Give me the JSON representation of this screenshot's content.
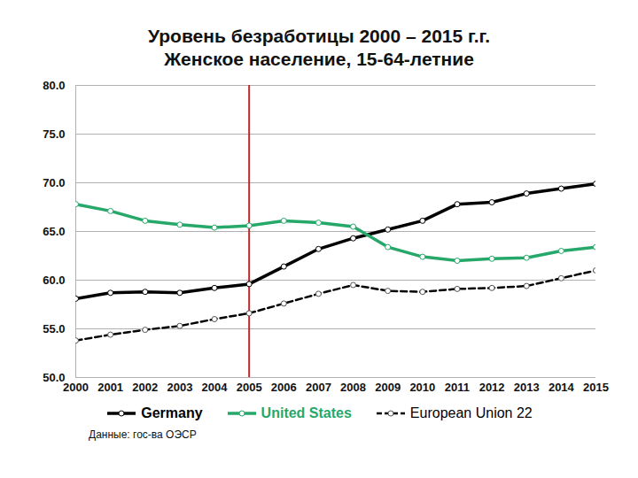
{
  "chart_data": {
    "type": "line",
    "title": "Уровень безработицы 2000 – 2015 г.г.",
    "subtitle": "Женское население, 15-64-летние",
    "source": "Данные: гос-ва ОЭСР",
    "x": [
      2000,
      2001,
      2002,
      2003,
      2004,
      2005,
      2006,
      2007,
      2008,
      2009,
      2010,
      2011,
      2012,
      2013,
      2014,
      2015
    ],
    "series": [
      {
        "name": "Germany",
        "color": "#000000",
        "marker": "circle",
        "line_style": "solid",
        "values": [
          58.1,
          58.7,
          58.8,
          58.7,
          59.2,
          59.6,
          61.4,
          63.2,
          64.3,
          65.2,
          66.1,
          67.8,
          68.0,
          68.9,
          69.4,
          69.9
        ]
      },
      {
        "name": "United States",
        "color": "#26a86a",
        "marker": "circle",
        "line_style": "solid",
        "values": [
          67.8,
          67.1,
          66.1,
          65.7,
          65.4,
          65.6,
          66.1,
          65.9,
          65.5,
          63.4,
          62.4,
          62.0,
          62.2,
          62.3,
          63.0,
          63.4
        ]
      },
      {
        "name": "European Union 22",
        "color": "#000000",
        "marker": "circle",
        "line_style": "dashed",
        "values": [
          53.8,
          54.4,
          54.9,
          55.3,
          56.0,
          56.6,
          57.6,
          58.6,
          59.5,
          58.9,
          58.8,
          59.1,
          59.2,
          59.4,
          60.2,
          61.0
        ]
      }
    ],
    "reference_lines": [
      {
        "x": 2005,
        "color": "#c0282d"
      }
    ],
    "xlim": [
      2000,
      2015
    ],
    "xticks": [
      2000,
      2001,
      2002,
      2003,
      2004,
      2005,
      2006,
      2007,
      2008,
      2009,
      2010,
      2011,
      2012,
      2013,
      2014,
      2015
    ],
    "ylim": [
      50,
      80
    ],
    "yticks": [
      {
        "value": 50,
        "label": "50.0"
      },
      {
        "value": 55,
        "label": "55.0"
      },
      {
        "value": 60,
        "label": "60.0"
      },
      {
        "value": 65,
        "label": "65.0"
      },
      {
        "value": 70,
        "label": "70.0"
      },
      {
        "value": 75,
        "label": "75.0"
      },
      {
        "value": 80,
        "label": "80.0"
      }
    ],
    "grid": true,
    "legend": "bottom"
  }
}
